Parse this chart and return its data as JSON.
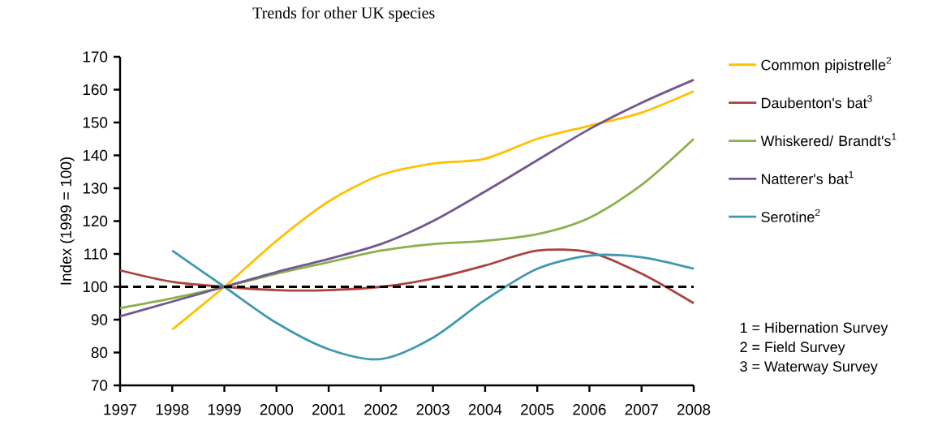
{
  "chart_data": {
    "type": "line",
    "title": "Trends for other UK species",
    "ylabel": "Index (1999 = 100)",
    "x": [
      1997,
      1998,
      1999,
      2000,
      2001,
      2002,
      2003,
      2004,
      2005,
      2006,
      2007,
      2008
    ],
    "xlim": [
      1997,
      2008
    ],
    "xticks": [
      1997,
      1998,
      1999,
      2000,
      2001,
      2002,
      2003,
      2004,
      2005,
      2006,
      2007,
      2008
    ],
    "ylim": [
      70,
      170
    ],
    "yticks": [
      70,
      80,
      90,
      100,
      110,
      120,
      130,
      140,
      150,
      160,
      170
    ],
    "series": [
      {
        "name": "Common pipistrelle$^{2}$",
        "color": "#ffc000",
        "values": [
          null,
          87,
          100,
          114,
          126,
          134,
          137.5,
          139,
          145,
          149,
          153,
          159.5
        ]
      },
      {
        "name": "Daubenton's bat$^{3}$",
        "color": "#aa423e",
        "values": [
          105,
          101.5,
          100,
          99,
          99,
          100,
          102.5,
          106.5,
          111,
          110.5,
          104,
          95
        ]
      },
      {
        "name": "Whiskered/ Brandt's$^{1}$",
        "color": "#8cb04c",
        "values": [
          93.5,
          96.5,
          100,
          104,
          107.5,
          111,
          113,
          114,
          116,
          121,
          131,
          145
        ]
      },
      {
        "name": "Natterer's bat$^{1}$",
        "color": "#72588f",
        "values": [
          91,
          95.5,
          100,
          104.5,
          108.5,
          113,
          120,
          129,
          138.5,
          148,
          156,
          163
        ]
      },
      {
        "name": "Serotine$^{2}$",
        "color": "#4198af",
        "values": [
          null,
          111,
          100,
          89,
          81,
          78,
          84.5,
          96,
          105.5,
          109.5,
          109,
          105.5
        ]
      }
    ],
    "ref_lines": [
      {
        "axis": "y",
        "value": 100,
        "color": "#000000",
        "line_style": "dashed"
      }
    ],
    "annotations": [
      "1 = Hibernation Survey",
      "2 = Field Survey",
      "3 = Waterway Survey"
    ],
    "legend": "right",
    "grid": false,
    "marker": "none",
    "line_style": "solid"
  }
}
